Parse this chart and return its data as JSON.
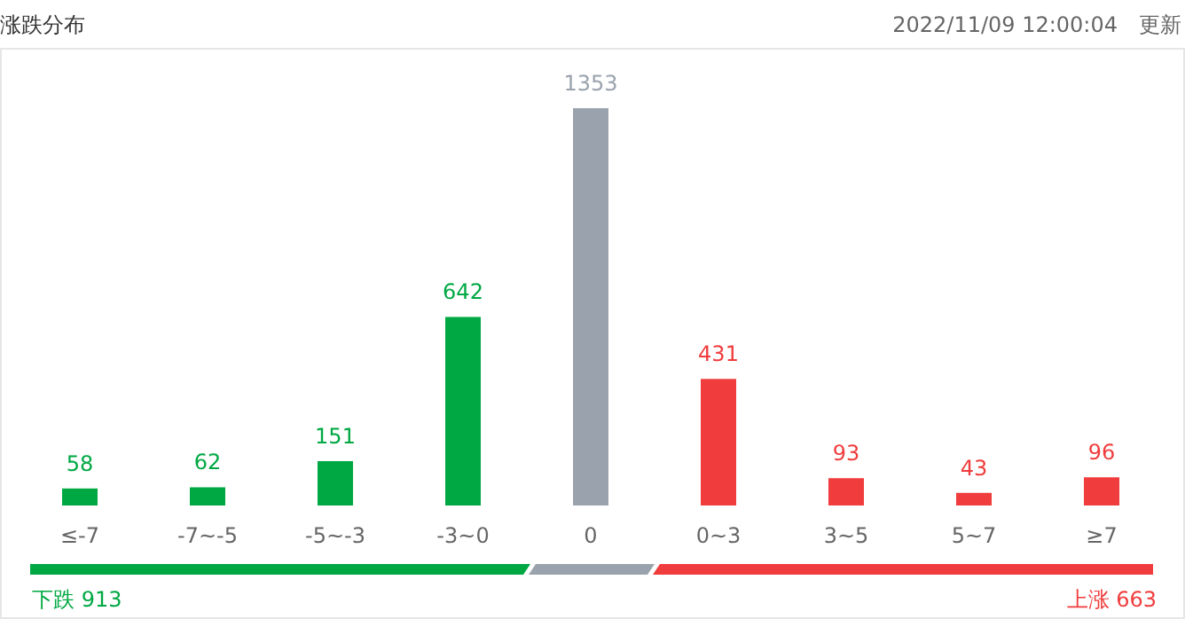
{
  "chart_data": {
    "type": "bar",
    "title": "涨跌分布",
    "categories": [
      "≤-7",
      "-7~-5",
      "-5~-3",
      "-3~0",
      "0",
      "0~3",
      "3~5",
      "5~7",
      "≥7"
    ],
    "values": [
      58,
      62,
      151,
      642,
      1353,
      431,
      93,
      43,
      96
    ],
    "colors": [
      "#00a843",
      "#00a843",
      "#00a843",
      "#00a843",
      "#9aa3ad",
      "#f03c3c",
      "#f03c3c",
      "#f03c3c",
      "#f03c3c"
    ],
    "data_labels": true,
    "annotations": [
      "2022/11/09 12:00:04",
      "更新",
      "下跌 913",
      "上涨 663"
    ]
  }
}
